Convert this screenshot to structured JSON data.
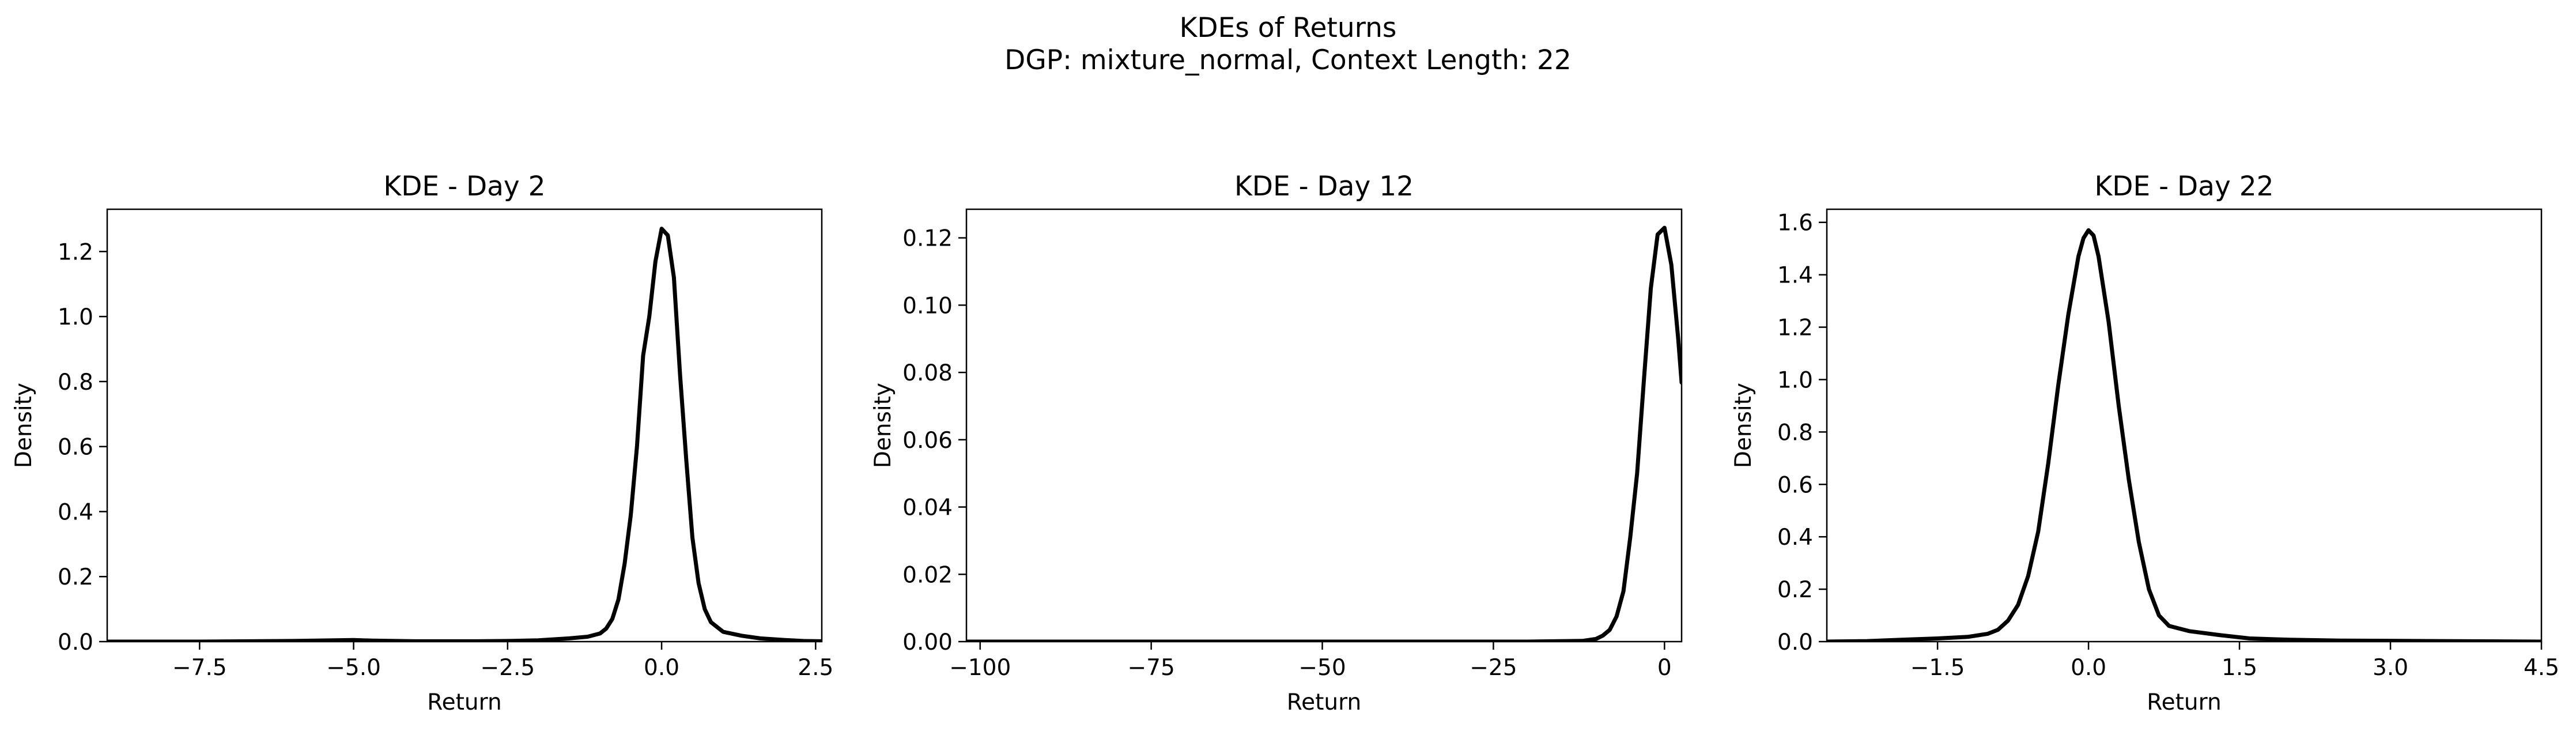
{
  "figure": {
    "title_line1": "KDEs of Returns",
    "title_line2": "DGP: mixture_normal, Context Length: 22",
    "line_color": "#000000"
  },
  "chart_data": [
    {
      "type": "line",
      "title": "KDE - Day 2",
      "xlabel": "Return",
      "ylabel": "Density",
      "xlim": [
        -9.0,
        2.6
      ],
      "ylim": [
        0.0,
        1.33
      ],
      "xticks": [
        -7.5,
        -5.0,
        -2.5,
        0.0,
        2.5
      ],
      "xtick_labels": [
        "−7.5",
        "−5.0",
        "−2.5",
        "0.0",
        "2.5"
      ],
      "yticks": [
        0.0,
        0.2,
        0.4,
        0.6,
        0.8,
        1.0,
        1.2
      ],
      "ytick_labels": [
        "0.0",
        "0.2",
        "0.4",
        "0.6",
        "0.8",
        "1.0",
        "1.2"
      ],
      "grid": false,
      "series": [
        {
          "x": [
            -9.0,
            -7.5,
            -6.0,
            -5.3,
            -5.0,
            -4.7,
            -4.0,
            -3.0,
            -2.5,
            -2.0,
            -1.5,
            -1.2,
            -1.0,
            -0.9,
            -0.8,
            -0.7,
            -0.6,
            -0.5,
            -0.4,
            -0.3,
            -0.2,
            -0.1,
            0.0,
            0.1,
            0.2,
            0.3,
            0.4,
            0.5,
            0.6,
            0.7,
            0.8,
            1.0,
            1.3,
            1.6,
            2.0,
            2.3,
            2.6
          ],
          "y": [
            0.0,
            0.0,
            0.002,
            0.004,
            0.005,
            0.003,
            0.001,
            0.001,
            0.002,
            0.004,
            0.01,
            0.015,
            0.025,
            0.04,
            0.07,
            0.13,
            0.24,
            0.39,
            0.6,
            0.88,
            1.0,
            1.17,
            1.27,
            1.25,
            1.12,
            0.82,
            0.56,
            0.32,
            0.18,
            0.1,
            0.06,
            0.03,
            0.018,
            0.01,
            0.005,
            0.002,
            0.001
          ]
        }
      ]
    },
    {
      "type": "line",
      "title": "KDE - Day 12",
      "xlabel": "Return",
      "ylabel": "Density",
      "xlim": [
        -102.0,
        2.5
      ],
      "ylim": [
        0.0,
        0.1285
      ],
      "xticks": [
        -100,
        -75,
        -50,
        -25,
        0
      ],
      "xtick_labels": [
        "−100",
        "−75",
        "−50",
        "−25",
        "0"
      ],
      "yticks": [
        0.0,
        0.02,
        0.04,
        0.06,
        0.08,
        0.1,
        0.12
      ],
      "ytick_labels": [
        "0.00",
        "0.02",
        "0.04",
        "0.06",
        "0.08",
        "0.10",
        "0.12"
      ],
      "grid": false,
      "series": [
        {
          "x": [
            -102.0,
            -80.0,
            -60.0,
            -40.0,
            -20.0,
            -12.0,
            -10.0,
            -9.0,
            -8.0,
            -7.0,
            -6.0,
            -5.0,
            -4.0,
            -3.0,
            -2.0,
            -1.0,
            0.0,
            1.0,
            2.0,
            2.5
          ],
          "y": [
            0.0,
            0.0,
            0.0,
            0.0,
            0.0,
            0.0002,
            0.0008,
            0.0018,
            0.0035,
            0.0075,
            0.015,
            0.031,
            0.05,
            0.078,
            0.105,
            0.121,
            0.123,
            0.112,
            0.09,
            0.077
          ]
        }
      ]
    },
    {
      "type": "line",
      "title": "KDE - Day 22",
      "xlabel": "Return",
      "ylabel": "Density",
      "xlim": [
        -2.6,
        4.5
      ],
      "ylim": [
        0.0,
        1.65
      ],
      "xticks": [
        -1.5,
        0.0,
        1.5,
        3.0,
        4.5
      ],
      "xtick_labels": [
        "−1.5",
        "0.0",
        "1.5",
        "3.0",
        "4.5"
      ],
      "yticks": [
        0.0,
        0.2,
        0.4,
        0.6,
        0.8,
        1.0,
        1.2,
        1.4,
        1.6
      ],
      "ytick_labels": [
        "0.0",
        "0.2",
        "0.4",
        "0.6",
        "0.8",
        "1.0",
        "1.2",
        "1.4",
        "1.6"
      ],
      "grid": false,
      "series": [
        {
          "x": [
            -2.6,
            -2.2,
            -1.8,
            -1.5,
            -1.2,
            -1.0,
            -0.9,
            -0.8,
            -0.7,
            -0.6,
            -0.5,
            -0.4,
            -0.3,
            -0.2,
            -0.1,
            -0.05,
            0.0,
            0.05,
            0.1,
            0.2,
            0.3,
            0.4,
            0.5,
            0.6,
            0.7,
            0.8,
            1.0,
            1.3,
            1.6,
            2.0,
            2.5,
            3.0,
            3.5,
            4.0,
            4.5
          ],
          "y": [
            0.0,
            0.002,
            0.008,
            0.012,
            0.018,
            0.03,
            0.045,
            0.08,
            0.14,
            0.25,
            0.42,
            0.68,
            0.98,
            1.25,
            1.47,
            1.54,
            1.57,
            1.55,
            1.47,
            1.22,
            0.9,
            0.62,
            0.38,
            0.2,
            0.1,
            0.06,
            0.04,
            0.025,
            0.012,
            0.007,
            0.004,
            0.003,
            0.002,
            0.001,
            0.0
          ]
        }
      ]
    }
  ]
}
